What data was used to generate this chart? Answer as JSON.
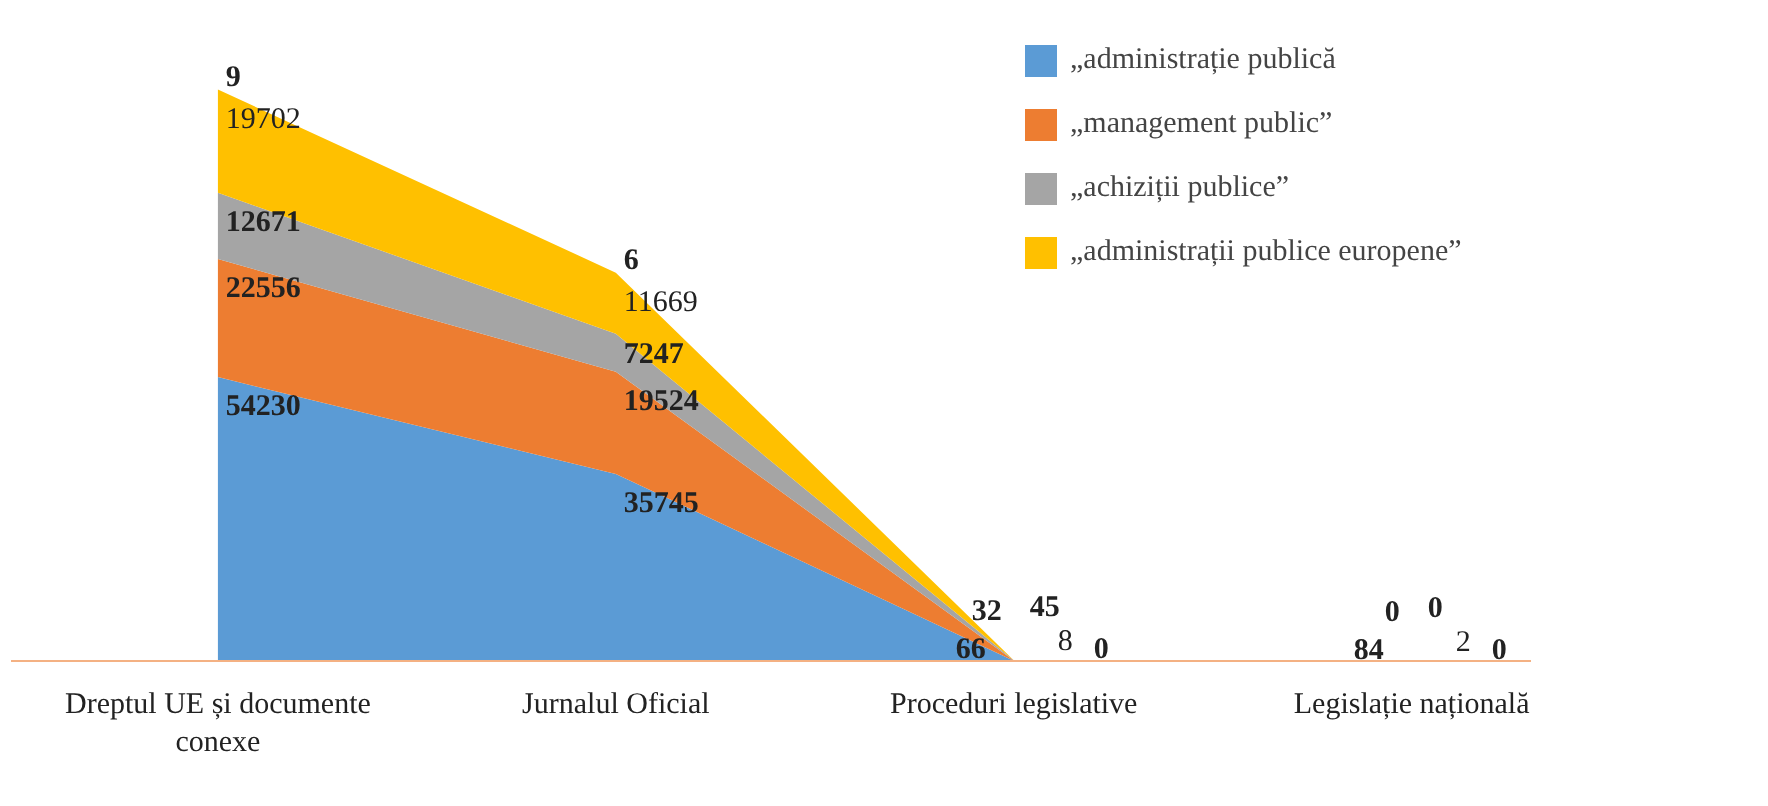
{
  "chart_data": {
    "type": "area",
    "stacked": true,
    "data_labels": true,
    "legend": "top right",
    "categories": [
      "Dreptul UE și documente conexe",
      "Jurnalul Oficial",
      "Proceduri legislative",
      "Legislație națională"
    ],
    "series": [
      {
        "name": "„administrație publică",
        "color": "#5b9bd5",
        "values": [
          54230,
          35745,
          66,
          84
        ]
      },
      {
        "name": "„management public”",
        "color": "#ed7d31",
        "values": [
          22556,
          19524,
          32,
          0
        ]
      },
      {
        "name": "„achiziții publice”",
        "color": "#a5a5a5",
        "values": [
          12671,
          7247,
          45,
          0
        ]
      },
      {
        "name": "„administrații publice europene”",
        "color": "#ffc000",
        "values": [
          19702,
          11669,
          8,
          2
        ]
      }
    ],
    "annotations": [
      {
        "text": "9",
        "x": "Dreptul UE și documente conexe",
        "y": 109159
      },
      {
        "text": "6",
        "x": "Jurnalul Oficial",
        "y": 74185
      },
      {
        "text": "0",
        "x": "Proceduri legislative",
        "y": 151
      },
      {
        "text": "0",
        "x": "Legislație națională",
        "y": 86
      }
    ]
  }
}
